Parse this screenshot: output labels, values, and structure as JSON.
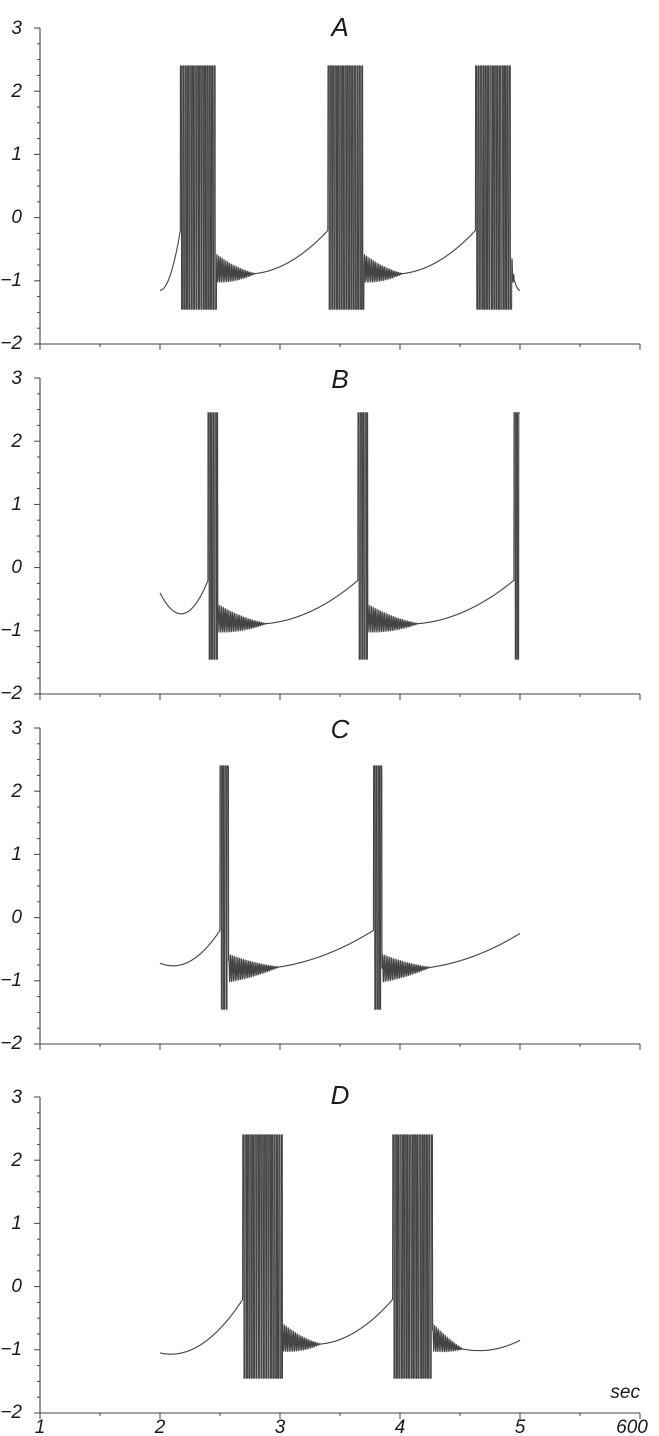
{
  "chart_data": [
    {
      "type": "line",
      "title": "A",
      "xlabel": "",
      "ylabel": "",
      "xlim": [
        1,
        6
      ],
      "ylim": [
        -2,
        3
      ],
      "yticks": [
        "3",
        "2",
        "1",
        "0",
        "−1",
        "−2"
      ],
      "grid": false,
      "legend": "none",
      "series": [
        {
          "pattern": "bursting",
          "x_range": [
            2.0,
            5.0
          ],
          "burst_starts": [
            2.17,
            3.4,
            4.63
          ],
          "burst_duration": 0.3,
          "spike_max": 2.4,
          "spike_min": -1.45,
          "trough": -1.15,
          "baseline_small_spikes": -0.8,
          "color": "#444444"
        }
      ]
    },
    {
      "type": "line",
      "title": "B",
      "xlabel": "",
      "ylabel": "",
      "xlim": [
        1,
        6
      ],
      "ylim": [
        -2,
        3
      ],
      "yticks": [
        "3",
        "2",
        "1",
        "0",
        "−1",
        "−2"
      ],
      "grid": false,
      "legend": "none",
      "series": [
        {
          "pattern": "bursting",
          "x_range": [
            2.0,
            5.0
          ],
          "burst_starts": [
            2.4,
            3.65,
            4.95
          ],
          "burst_duration": 0.08,
          "spike_max": 2.45,
          "spike_min": -1.45,
          "trough": -1.15,
          "start_value": -0.4,
          "color": "#444444"
        }
      ]
    },
    {
      "type": "line",
      "title": "C",
      "xlabel": "",
      "ylabel": "",
      "xlim": [
        1,
        6
      ],
      "ylim": [
        -2,
        3
      ],
      "yticks": [
        "3",
        "2",
        "1",
        "0",
        "−1",
        "−2"
      ],
      "grid": false,
      "legend": "none",
      "series": [
        {
          "pattern": "bursting",
          "x_range": [
            2.0,
            5.0
          ],
          "burst_starts": [
            2.5,
            3.78
          ],
          "burst_duration": 0.07,
          "spike_max": 2.4,
          "spike_min": -1.45,
          "trough": -0.92,
          "start_value": -0.72,
          "end_value": -0.25,
          "color": "#444444"
        }
      ]
    },
    {
      "type": "line",
      "title": "D",
      "xlabel": "sec",
      "ylabel": "",
      "xlim": [
        1,
        6
      ],
      "ylim": [
        -2,
        3
      ],
      "xticks": [
        "1",
        "2",
        "3",
        "4",
        "5",
        "600"
      ],
      "yticks": [
        "3",
        "2",
        "1",
        "0",
        "−1",
        "−2"
      ],
      "grid": false,
      "legend": "none",
      "series": [
        {
          "pattern": "bursting",
          "x_range": [
            2.0,
            5.0
          ],
          "burst_starts": [
            2.69,
            3.94
          ],
          "burst_duration": 0.33,
          "spike_max": 2.4,
          "spike_min": -1.45,
          "trough": -1.2,
          "start_value": -1.05,
          "end_value": -0.85,
          "color": "#444444"
        }
      ]
    }
  ]
}
